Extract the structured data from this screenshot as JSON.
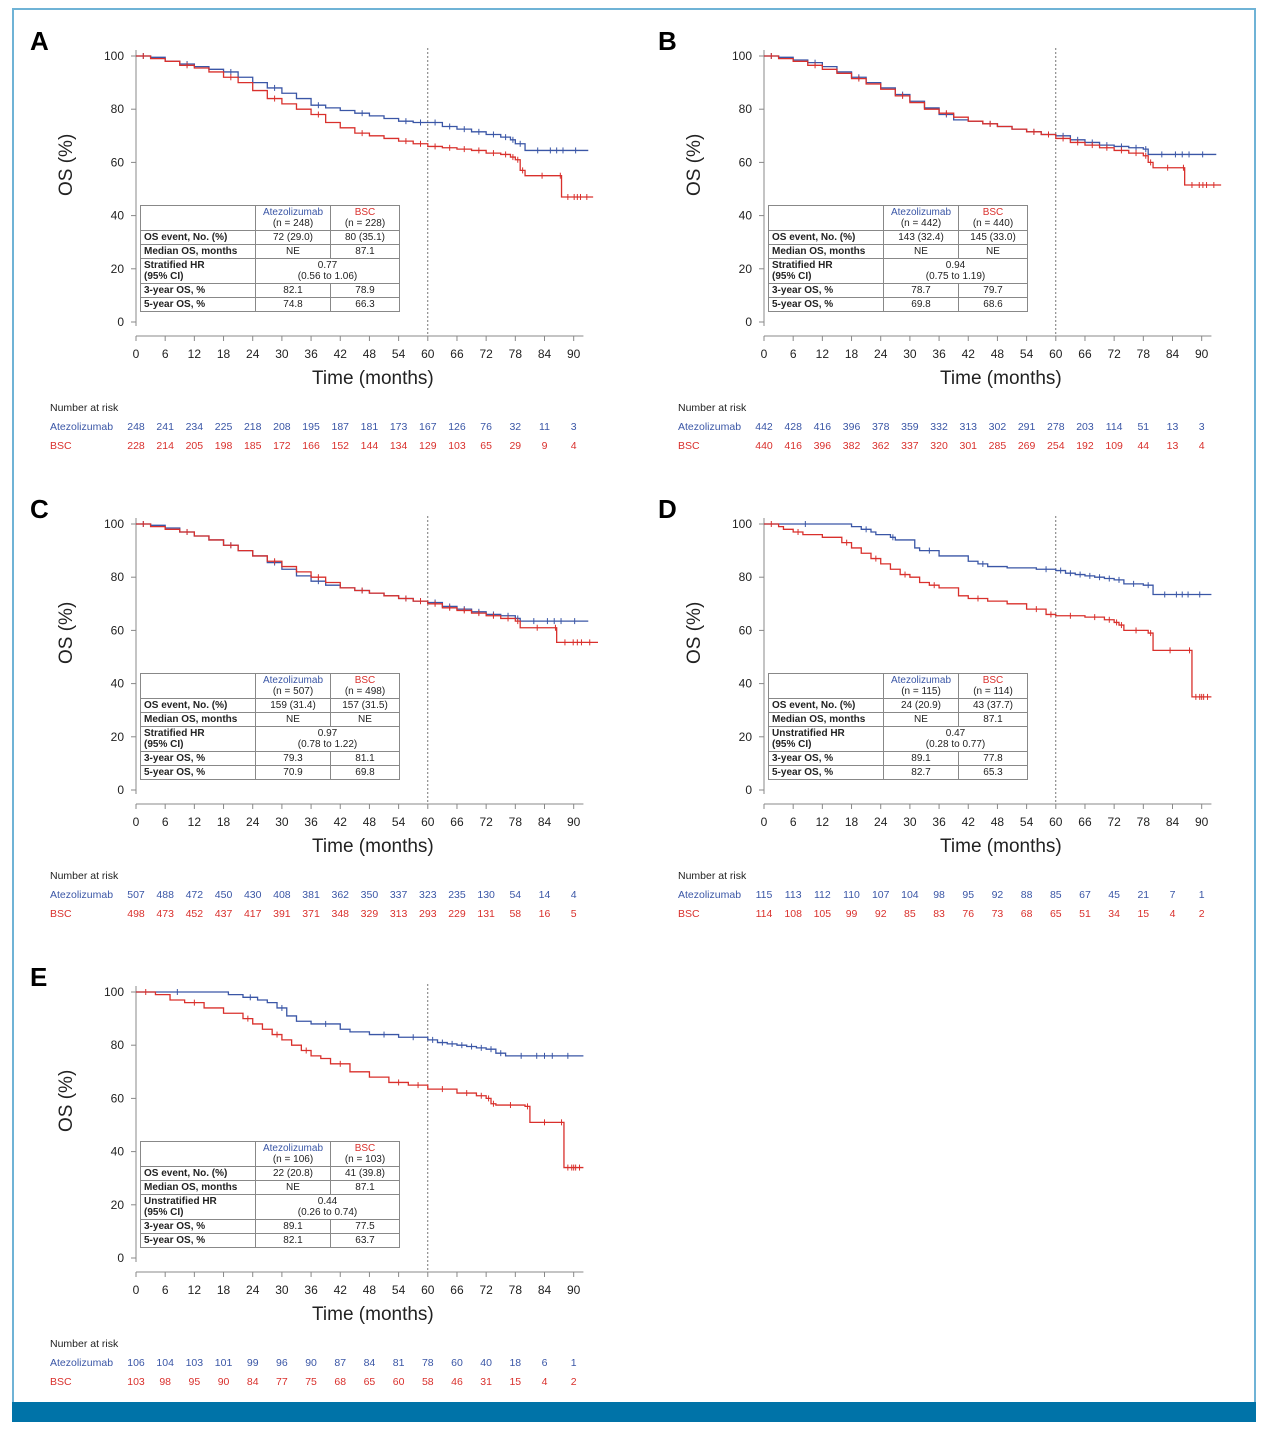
{
  "figure": {
    "colors": {
      "atezolizumab": "#3a56a6",
      "bsc": "#d9302c",
      "frame": "#6fb3d6",
      "footer_bar": "#0073a8"
    }
  },
  "chart_data": [
    {
      "panel": "A",
      "type": "line",
      "ylabel": "OS (%)",
      "xlabel": "Time (months)",
      "yticks": [
        0,
        20,
        40,
        60,
        80,
        100
      ],
      "xticks": [
        0,
        6,
        12,
        18,
        24,
        30,
        36,
        42,
        48,
        54,
        60,
        66,
        72,
        78,
        84,
        90
      ],
      "ylim": [
        0,
        100
      ],
      "xlim": [
        0,
        95
      ],
      "reference_line_x": 60,
      "series": [
        {
          "name": "Atezolizumab",
          "x": [
            0,
            3,
            6,
            9,
            12,
            15,
            18,
            21,
            24,
            27,
            30,
            33,
            36,
            39,
            42,
            45,
            48,
            51,
            54,
            57,
            60,
            63,
            66,
            69,
            72,
            75,
            77,
            78,
            80,
            93
          ],
          "y": [
            100,
            99.5,
            98,
            97,
            96,
            95,
            94,
            92,
            90,
            88,
            86,
            84,
            81.5,
            80.5,
            79.5,
            78.5,
            77.5,
            76.5,
            75.5,
            75,
            75,
            73.5,
            72.5,
            71.5,
            70.5,
            69.5,
            68.5,
            67,
            64.5,
            64.5
          ]
        },
        {
          "name": "BSC",
          "x": [
            0,
            3,
            6,
            9,
            12,
            15,
            18,
            21,
            24,
            27,
            30,
            33,
            36,
            39,
            42,
            45,
            48,
            51,
            54,
            57,
            60,
            63,
            66,
            69,
            72,
            75,
            77,
            78,
            79,
            80,
            87,
            87.5,
            94
          ],
          "y": [
            100,
            99,
            98,
            96.5,
            95.5,
            94,
            92,
            90,
            87,
            84,
            82,
            80,
            78,
            75,
            73,
            71,
            70,
            69,
            68,
            67,
            66,
            65.5,
            65,
            64.5,
            63.5,
            63,
            62,
            61,
            57,
            55,
            55,
            47,
            47
          ]
        }
      ],
      "stats": {
        "atz_n": "(n = 248)",
        "bsc_n": "(n = 228)",
        "hr_label": "Stratified HR",
        "ci_label": "(95% CI)",
        "events_atz": "72 (29.0)",
        "events_bsc": "80 (35.1)",
        "median_atz": "NE",
        "median_bsc": "87.1",
        "hr": "0.77",
        "hr_ci": "(0.56 to 1.06)",
        "y3_atz": "82.1",
        "y3_bsc": "78.9",
        "y5_atz": "74.8",
        "y5_bsc": "66.3"
      },
      "risk": {
        "atz": [
          248,
          241,
          234,
          225,
          218,
          208,
          195,
          187,
          181,
          173,
          167,
          126,
          76,
          32,
          11,
          3
        ],
        "bsc": [
          228,
          214,
          205,
          198,
          185,
          172,
          166,
          152,
          144,
          134,
          129,
          103,
          65,
          29,
          9,
          4
        ]
      }
    },
    {
      "panel": "B",
      "type": "line",
      "ylabel": "OS (%)",
      "xlabel": "Time (months)",
      "yticks": [
        0,
        20,
        40,
        60,
        80,
        100
      ],
      "xticks": [
        0,
        6,
        12,
        18,
        24,
        30,
        36,
        42,
        48,
        54,
        60,
        66,
        72,
        78,
        84,
        90
      ],
      "ylim": [
        0,
        100
      ],
      "xlim": [
        0,
        95
      ],
      "reference_line_x": 60,
      "series": [
        {
          "name": "Atezolizumab",
          "x": [
            0,
            3,
            6,
            9,
            12,
            15,
            18,
            21,
            24,
            27,
            30,
            33,
            36,
            39,
            42,
            45,
            48,
            51,
            54,
            57,
            60,
            63,
            66,
            69,
            72,
            75,
            78,
            79,
            93
          ],
          "y": [
            100,
            99.5,
            98.5,
            97.5,
            96,
            94,
            92,
            90,
            88,
            85.5,
            83,
            80.5,
            78,
            76,
            75.5,
            74.5,
            73.5,
            72.5,
            71.5,
            70.5,
            70,
            68.5,
            67.5,
            66.5,
            66,
            65.5,
            65,
            63,
            63
          ]
        },
        {
          "name": "BSC",
          "x": [
            0,
            3,
            6,
            9,
            12,
            15,
            18,
            21,
            24,
            27,
            30,
            33,
            36,
            39,
            42,
            45,
            48,
            51,
            54,
            57,
            60,
            63,
            66,
            69,
            72,
            75,
            78,
            79,
            80,
            86,
            86.5,
            94
          ],
          "y": [
            100,
            99,
            98,
            96.5,
            95,
            93.5,
            91.5,
            89.5,
            87.5,
            85,
            82.5,
            80,
            78.5,
            77,
            75.5,
            74.5,
            73.5,
            72.5,
            71.5,
            70.5,
            69,
            67.5,
            66.5,
            65.5,
            64.5,
            63.5,
            62.5,
            60,
            58,
            58,
            51.5,
            51.5
          ]
        }
      ],
      "stats": {
        "atz_n": "(n = 442)",
        "bsc_n": "(n = 440)",
        "hr_label": "Stratified HR",
        "ci_label": "(95% CI)",
        "events_atz": "143 (32.4)",
        "events_bsc": "145 (33.0)",
        "median_atz": "NE",
        "median_bsc": "NE",
        "hr": "0.94",
        "hr_ci": "(0.75 to 1.19)",
        "y3_atz": "78.7",
        "y3_bsc": "79.7",
        "y5_atz": "69.8",
        "y5_bsc": "68.6"
      },
      "risk": {
        "atz": [
          442,
          428,
          416,
          396,
          378,
          359,
          332,
          313,
          302,
          291,
          278,
          203,
          114,
          51,
          13,
          3
        ],
        "bsc": [
          440,
          416,
          396,
          382,
          362,
          337,
          320,
          301,
          285,
          269,
          254,
          192,
          109,
          44,
          13,
          4
        ]
      }
    },
    {
      "panel": "C",
      "type": "line",
      "ylabel": "OS (%)",
      "xlabel": "Time (months)",
      "yticks": [
        0,
        20,
        40,
        60,
        80,
        100
      ],
      "xticks": [
        0,
        6,
        12,
        18,
        24,
        30,
        36,
        42,
        48,
        54,
        60,
        66,
        72,
        78,
        84,
        90
      ],
      "ylim": [
        0,
        100
      ],
      "xlim": [
        0,
        95
      ],
      "reference_line_x": 60,
      "series": [
        {
          "name": "Atezolizumab",
          "x": [
            0,
            3,
            6,
            9,
            12,
            15,
            18,
            21,
            24,
            27,
            30,
            33,
            36,
            39,
            42,
            45,
            48,
            51,
            54,
            57,
            60,
            63,
            66,
            69,
            72,
            75,
            78,
            79,
            93
          ],
          "y": [
            100,
            99.5,
            98.5,
            97,
            95.5,
            94,
            92,
            90,
            88,
            85.5,
            83,
            80.5,
            78.5,
            77,
            76,
            75,
            74,
            73,
            72,
            71,
            70.5,
            69,
            68,
            67,
            66,
            65.5,
            64.5,
            63.5,
            63.5
          ]
        },
        {
          "name": "BSC",
          "x": [
            0,
            3,
            6,
            9,
            12,
            15,
            18,
            21,
            24,
            27,
            30,
            33,
            36,
            39,
            42,
            45,
            48,
            51,
            54,
            57,
            60,
            63,
            66,
            69,
            72,
            75,
            78,
            79,
            86,
            86.5,
            95
          ],
          "y": [
            100,
            99,
            98,
            97,
            95.5,
            94,
            92,
            90,
            88,
            86,
            84,
            82,
            80,
            78,
            76,
            75,
            74,
            73,
            72,
            71,
            70,
            68.5,
            67.5,
            66.5,
            65.5,
            64.5,
            63.5,
            61,
            61,
            55.5,
            55.5
          ]
        }
      ],
      "stats": {
        "atz_n": "(n = 507)",
        "bsc_n": "(n = 498)",
        "hr_label": "Stratified HR",
        "ci_label": "(95% CI)",
        "events_atz": "159 (31.4)",
        "events_bsc": "157 (31.5)",
        "median_atz": "NE",
        "median_bsc": "NE",
        "hr": "0.97",
        "hr_ci": "(0.78 to 1.22)",
        "y3_atz": "79.3",
        "y3_bsc": "81.1",
        "y5_atz": "70.9",
        "y5_bsc": "69.8"
      },
      "risk": {
        "atz": [
          507,
          488,
          472,
          450,
          430,
          408,
          381,
          362,
          350,
          337,
          323,
          235,
          130,
          54,
          14,
          4
        ],
        "bsc": [
          498,
          473,
          452,
          437,
          417,
          391,
          371,
          348,
          329,
          313,
          293,
          229,
          131,
          58,
          16,
          5
        ]
      }
    },
    {
      "panel": "D",
      "type": "line",
      "ylabel": "OS (%)",
      "xlabel": "Time (months)",
      "yticks": [
        0,
        20,
        40,
        60,
        80,
        100
      ],
      "xticks": [
        0,
        6,
        12,
        18,
        24,
        30,
        36,
        42,
        48,
        54,
        60,
        66,
        72,
        78,
        84,
        90
      ],
      "ylim": [
        0,
        100
      ],
      "xlim": [
        0,
        95
      ],
      "reference_line_x": 60,
      "series": [
        {
          "name": "Atezolizumab",
          "x": [
            0,
            17,
            18,
            20,
            22,
            23,
            26,
            27,
            31,
            32,
            36,
            42,
            44,
            46,
            50,
            56,
            60,
            62,
            64,
            66,
            68,
            70,
            72,
            74,
            78,
            80,
            92
          ],
          "y": [
            100,
            100,
            99,
            98,
            97,
            96,
            95,
            94,
            91,
            90,
            88,
            86,
            85,
            84,
            83.5,
            83,
            82.5,
            81.5,
            81,
            80.5,
            80,
            79.5,
            79,
            77.5,
            77,
            73.5,
            73.5
          ]
        },
        {
          "name": "BSC",
          "x": [
            0,
            3,
            4,
            6,
            8,
            12,
            16,
            18,
            20,
            22,
            24,
            26,
            28,
            30,
            32,
            34,
            36,
            40,
            42,
            46,
            50,
            54,
            58,
            60,
            66,
            70,
            72,
            73,
            74,
            79,
            80,
            87,
            88,
            92
          ],
          "y": [
            100,
            99,
            98,
            97,
            96,
            95,
            93,
            91,
            89,
            87,
            85,
            83,
            81,
            80,
            78,
            77,
            76,
            73,
            72,
            71,
            70,
            68,
            66,
            65.5,
            65,
            64,
            63,
            62,
            60,
            59,
            52.5,
            52.5,
            35,
            35
          ]
        }
      ],
      "stats": {
        "atz_n": "(n = 115)",
        "bsc_n": "(n = 114)",
        "hr_label": "Unstratified HR",
        "ci_label": "(95% CI)",
        "events_atz": "24 (20.9)",
        "events_bsc": "43 (37.7)",
        "median_atz": "NE",
        "median_bsc": "87.1",
        "hr": "0.47",
        "hr_ci": "(0.28 to 0.77)",
        "y3_atz": "89.1",
        "y3_bsc": "77.8",
        "y5_atz": "82.7",
        "y5_bsc": "65.3"
      },
      "risk": {
        "atz": [
          115,
          113,
          112,
          110,
          107,
          104,
          98,
          95,
          92,
          88,
          85,
          67,
          45,
          21,
          7,
          1
        ],
        "bsc": [
          114,
          108,
          105,
          99,
          92,
          85,
          83,
          76,
          73,
          68,
          65,
          51,
          34,
          15,
          4,
          2
        ]
      }
    },
    {
      "panel": "E",
      "type": "line",
      "ylabel": "OS (%)",
      "xlabel": "Time (months)",
      "yticks": [
        0,
        20,
        40,
        60,
        80,
        100
      ],
      "xticks": [
        0,
        6,
        12,
        18,
        24,
        30,
        36,
        42,
        48,
        54,
        60,
        66,
        72,
        78,
        84,
        90
      ],
      "ylim": [
        0,
        100
      ],
      "xlim": [
        0,
        95
      ],
      "reference_line_x": 60,
      "series": [
        {
          "name": "Atezolizumab",
          "x": [
            0,
            17,
            19,
            22,
            25,
            27,
            29,
            31,
            33,
            36,
            42,
            44,
            48,
            54,
            60,
            62,
            64,
            66,
            68,
            70,
            72,
            74,
            76,
            92
          ],
          "y": [
            100,
            100,
            99,
            98,
            97,
            96,
            94,
            91,
            89,
            88,
            86,
            85,
            84,
            83,
            82,
            81,
            80.5,
            80,
            79.5,
            79,
            78.5,
            77,
            76,
            76
          ]
        },
        {
          "name": "BSC",
          "x": [
            0,
            4,
            7,
            10,
            14,
            18,
            22,
            24,
            26,
            28,
            30,
            32,
            34,
            36,
            38,
            40,
            44,
            48,
            52,
            56,
            60,
            66,
            70,
            72,
            73,
            74,
            80,
            81,
            87,
            88,
            92
          ],
          "y": [
            100,
            99,
            97,
            96,
            94,
            92,
            90,
            88,
            86,
            84,
            82,
            80,
            78,
            76,
            75,
            73,
            70,
            68,
            66,
            65,
            63.5,
            62,
            61,
            60,
            58,
            57.5,
            57,
            51,
            51,
            34,
            34
          ]
        }
      ],
      "stats": {
        "atz_n": "(n = 106)",
        "bsc_n": "(n = 103)",
        "hr_label": "Unstratified HR",
        "ci_label": "(95% CI)",
        "events_atz": "22 (20.8)",
        "events_bsc": "41 (39.8)",
        "median_atz": "NE",
        "median_bsc": "87.1",
        "hr": "0.44",
        "hr_ci": "(0.26 to 0.74)",
        "y3_atz": "89.1",
        "y3_bsc": "77.5",
        "y5_atz": "82.1",
        "y5_bsc": "63.7"
      },
      "risk": {
        "atz": [
          106,
          104,
          103,
          101,
          99,
          96,
          90,
          87,
          84,
          81,
          78,
          60,
          40,
          18,
          6,
          1
        ],
        "bsc": [
          103,
          98,
          95,
          90,
          84,
          77,
          75,
          68,
          65,
          60,
          58,
          46,
          31,
          15,
          4,
          2
        ]
      }
    }
  ],
  "labels": {
    "atz_name": "Atezolizumab",
    "bsc_name": "BSC",
    "row_events": "OS event, No. (%)",
    "row_median": "Median OS, months",
    "row_3y": "3-year OS, %",
    "row_5y": "5-year OS, %",
    "number_at_risk": "Number at risk"
  }
}
